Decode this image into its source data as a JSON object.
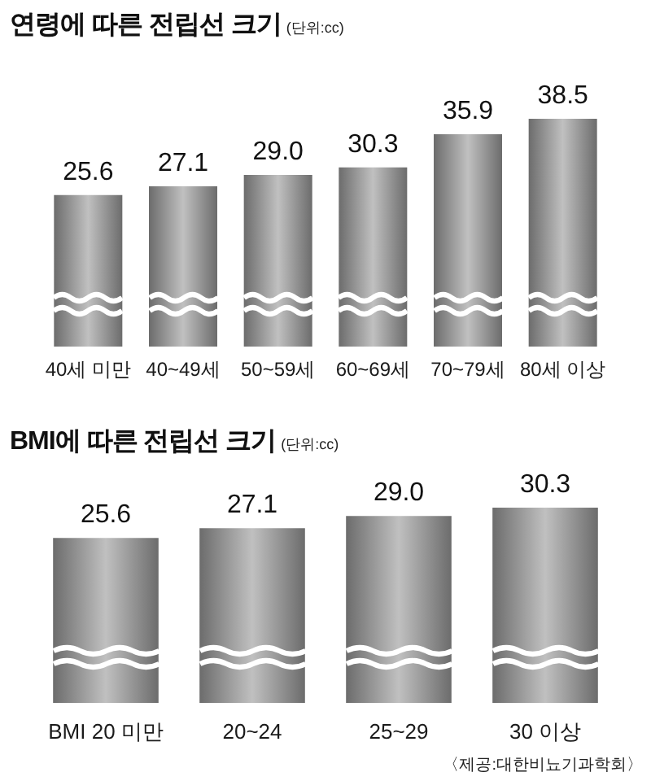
{
  "chart_data": [
    {
      "type": "bar",
      "title": "연령에 따른 전립선 크기",
      "subtitle": "(단위:cc)",
      "categories": [
        "40세 미만",
        "40~49세",
        "50~59세",
        "60~69세",
        "70~79세",
        "80세 이상"
      ],
      "values": [
        25.6,
        27.1,
        29.0,
        30.3,
        35.9,
        38.5
      ],
      "value_labels": [
        "25.6",
        "27.1",
        "29.0",
        "30.3",
        "35.9",
        "38.5"
      ],
      "color": "#9a9a9a",
      "tick_labels": "x"
    },
    {
      "type": "bar",
      "title": "BMI에 따른 전립선 크기",
      "subtitle": "(단위:cc)",
      "categories": [
        "BMI 20 미만",
        "20~24",
        "25~29",
        "30 이상"
      ],
      "values": [
        25.6,
        27.1,
        29.0,
        30.3
      ],
      "value_labels": [
        "25.6",
        "27.1",
        "29.0",
        "30.3"
      ],
      "color": "#9a9a9a",
      "tick_labels": "x",
      "annotations": [
        "〈제공:대한비뇨기과학회〉"
      ]
    }
  ]
}
